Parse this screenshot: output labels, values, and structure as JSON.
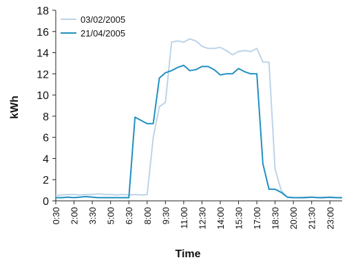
{
  "chart_data": {
    "type": "line",
    "xlabel": "Time",
    "ylabel": "kWh",
    "ylim": [
      0,
      18
    ],
    "y_ticks": [
      0,
      2,
      4,
      6,
      8,
      10,
      12,
      14,
      16,
      18
    ],
    "grid": false,
    "legend_position": "top-left",
    "x": [
      "0:30",
      "1:00",
      "1:30",
      "2:00",
      "2:30",
      "3:00",
      "3:30",
      "4:00",
      "4:30",
      "5:00",
      "5:30",
      "6:00",
      "6:30",
      "7:00",
      "7:30",
      "8:00",
      "8:30",
      "9:00",
      "9:30",
      "10:00",
      "10:30",
      "11:00",
      "11:30",
      "12:00",
      "12:30",
      "13:00",
      "13:30",
      "14:00",
      "14:30",
      "15:00",
      "15:30",
      "16:00",
      "16:30",
      "17:00",
      "17:30",
      "18:00",
      "18:30",
      "19:00",
      "19:30",
      "20:00",
      "20:30",
      "21:00",
      "21:30",
      "22:00",
      "22:30",
      "23:00",
      "23:30",
      "0:00"
    ],
    "x_tick_labels": [
      "0:30",
      "2:00",
      "3:30",
      "5:00",
      "6:30",
      "8:00",
      "9:30",
      "11:00",
      "12:30",
      "14:00",
      "15:30",
      "17:00",
      "18:30",
      "20:00",
      "21:30",
      "23:00"
    ],
    "series": [
      {
        "name": "03/02/2005",
        "color": "#bcd4e8",
        "values": [
          0.5,
          0.55,
          0.6,
          0.6,
          0.55,
          0.6,
          0.6,
          0.65,
          0.6,
          0.6,
          0.55,
          0.6,
          0.55,
          0.6,
          0.55,
          0.6,
          6.0,
          8.9,
          9.3,
          15.0,
          15.1,
          15.0,
          15.3,
          15.1,
          14.6,
          14.4,
          14.4,
          14.5,
          14.2,
          13.8,
          14.1,
          14.2,
          14.1,
          14.4,
          13.1,
          13.1,
          3.0,
          1.0,
          0.35,
          0.3,
          0.3,
          0.35,
          0.35,
          0.3,
          0.35,
          0.3,
          0.3,
          0.3
        ]
      },
      {
        "name": "21/04/2005",
        "color": "#1f8fc2",
        "values": [
          0.3,
          0.3,
          0.35,
          0.3,
          0.35,
          0.4,
          0.35,
          0.3,
          0.3,
          0.3,
          0.3,
          0.3,
          0.3,
          7.9,
          7.6,
          7.3,
          7.3,
          11.6,
          12.1,
          12.3,
          12.6,
          12.8,
          12.3,
          12.4,
          12.7,
          12.7,
          12.4,
          11.9,
          12.0,
          12.0,
          12.5,
          12.2,
          12.0,
          12.0,
          3.5,
          1.1,
          1.1,
          0.8,
          0.35,
          0.3,
          0.3,
          0.3,
          0.35,
          0.3,
          0.3,
          0.35,
          0.3,
          0.3
        ]
      }
    ]
  }
}
